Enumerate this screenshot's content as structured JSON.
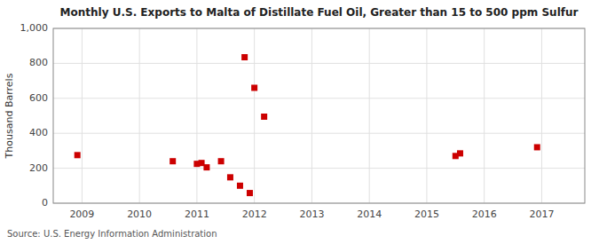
{
  "chart_data": {
    "type": "scatter",
    "title": "Monthly U.S. Exports to Malta of Distillate Fuel Oil, Greater than 15 to 500 ppm Sulfur",
    "ylabel": "Thousand Barrels",
    "source": "Source: U.S. Energy Information Administration",
    "x": [
      2008.92,
      2010.58,
      2011.0,
      2011.08,
      2011.17,
      2011.42,
      2011.58,
      2011.75,
      2011.83,
      2011.92,
      2012.0,
      2012.17,
      2015.5,
      2015.58,
      2016.92
    ],
    "values": [
      275,
      240,
      225,
      230,
      205,
      240,
      148,
      100,
      835,
      58,
      660,
      495,
      270,
      285,
      320
    ],
    "color": "#cc0000",
    "marker": "square",
    "xlim": [
      2008.5,
      2017.75
    ],
    "xticks": [
      2009,
      2010,
      2011,
      2012,
      2013,
      2014,
      2015,
      2016,
      2017
    ],
    "ylim": [
      0,
      1000
    ],
    "yticks": [
      0,
      200,
      400,
      600,
      800,
      {
        "value": 1000,
        "label": "1,000"
      }
    ],
    "grid": true
  }
}
